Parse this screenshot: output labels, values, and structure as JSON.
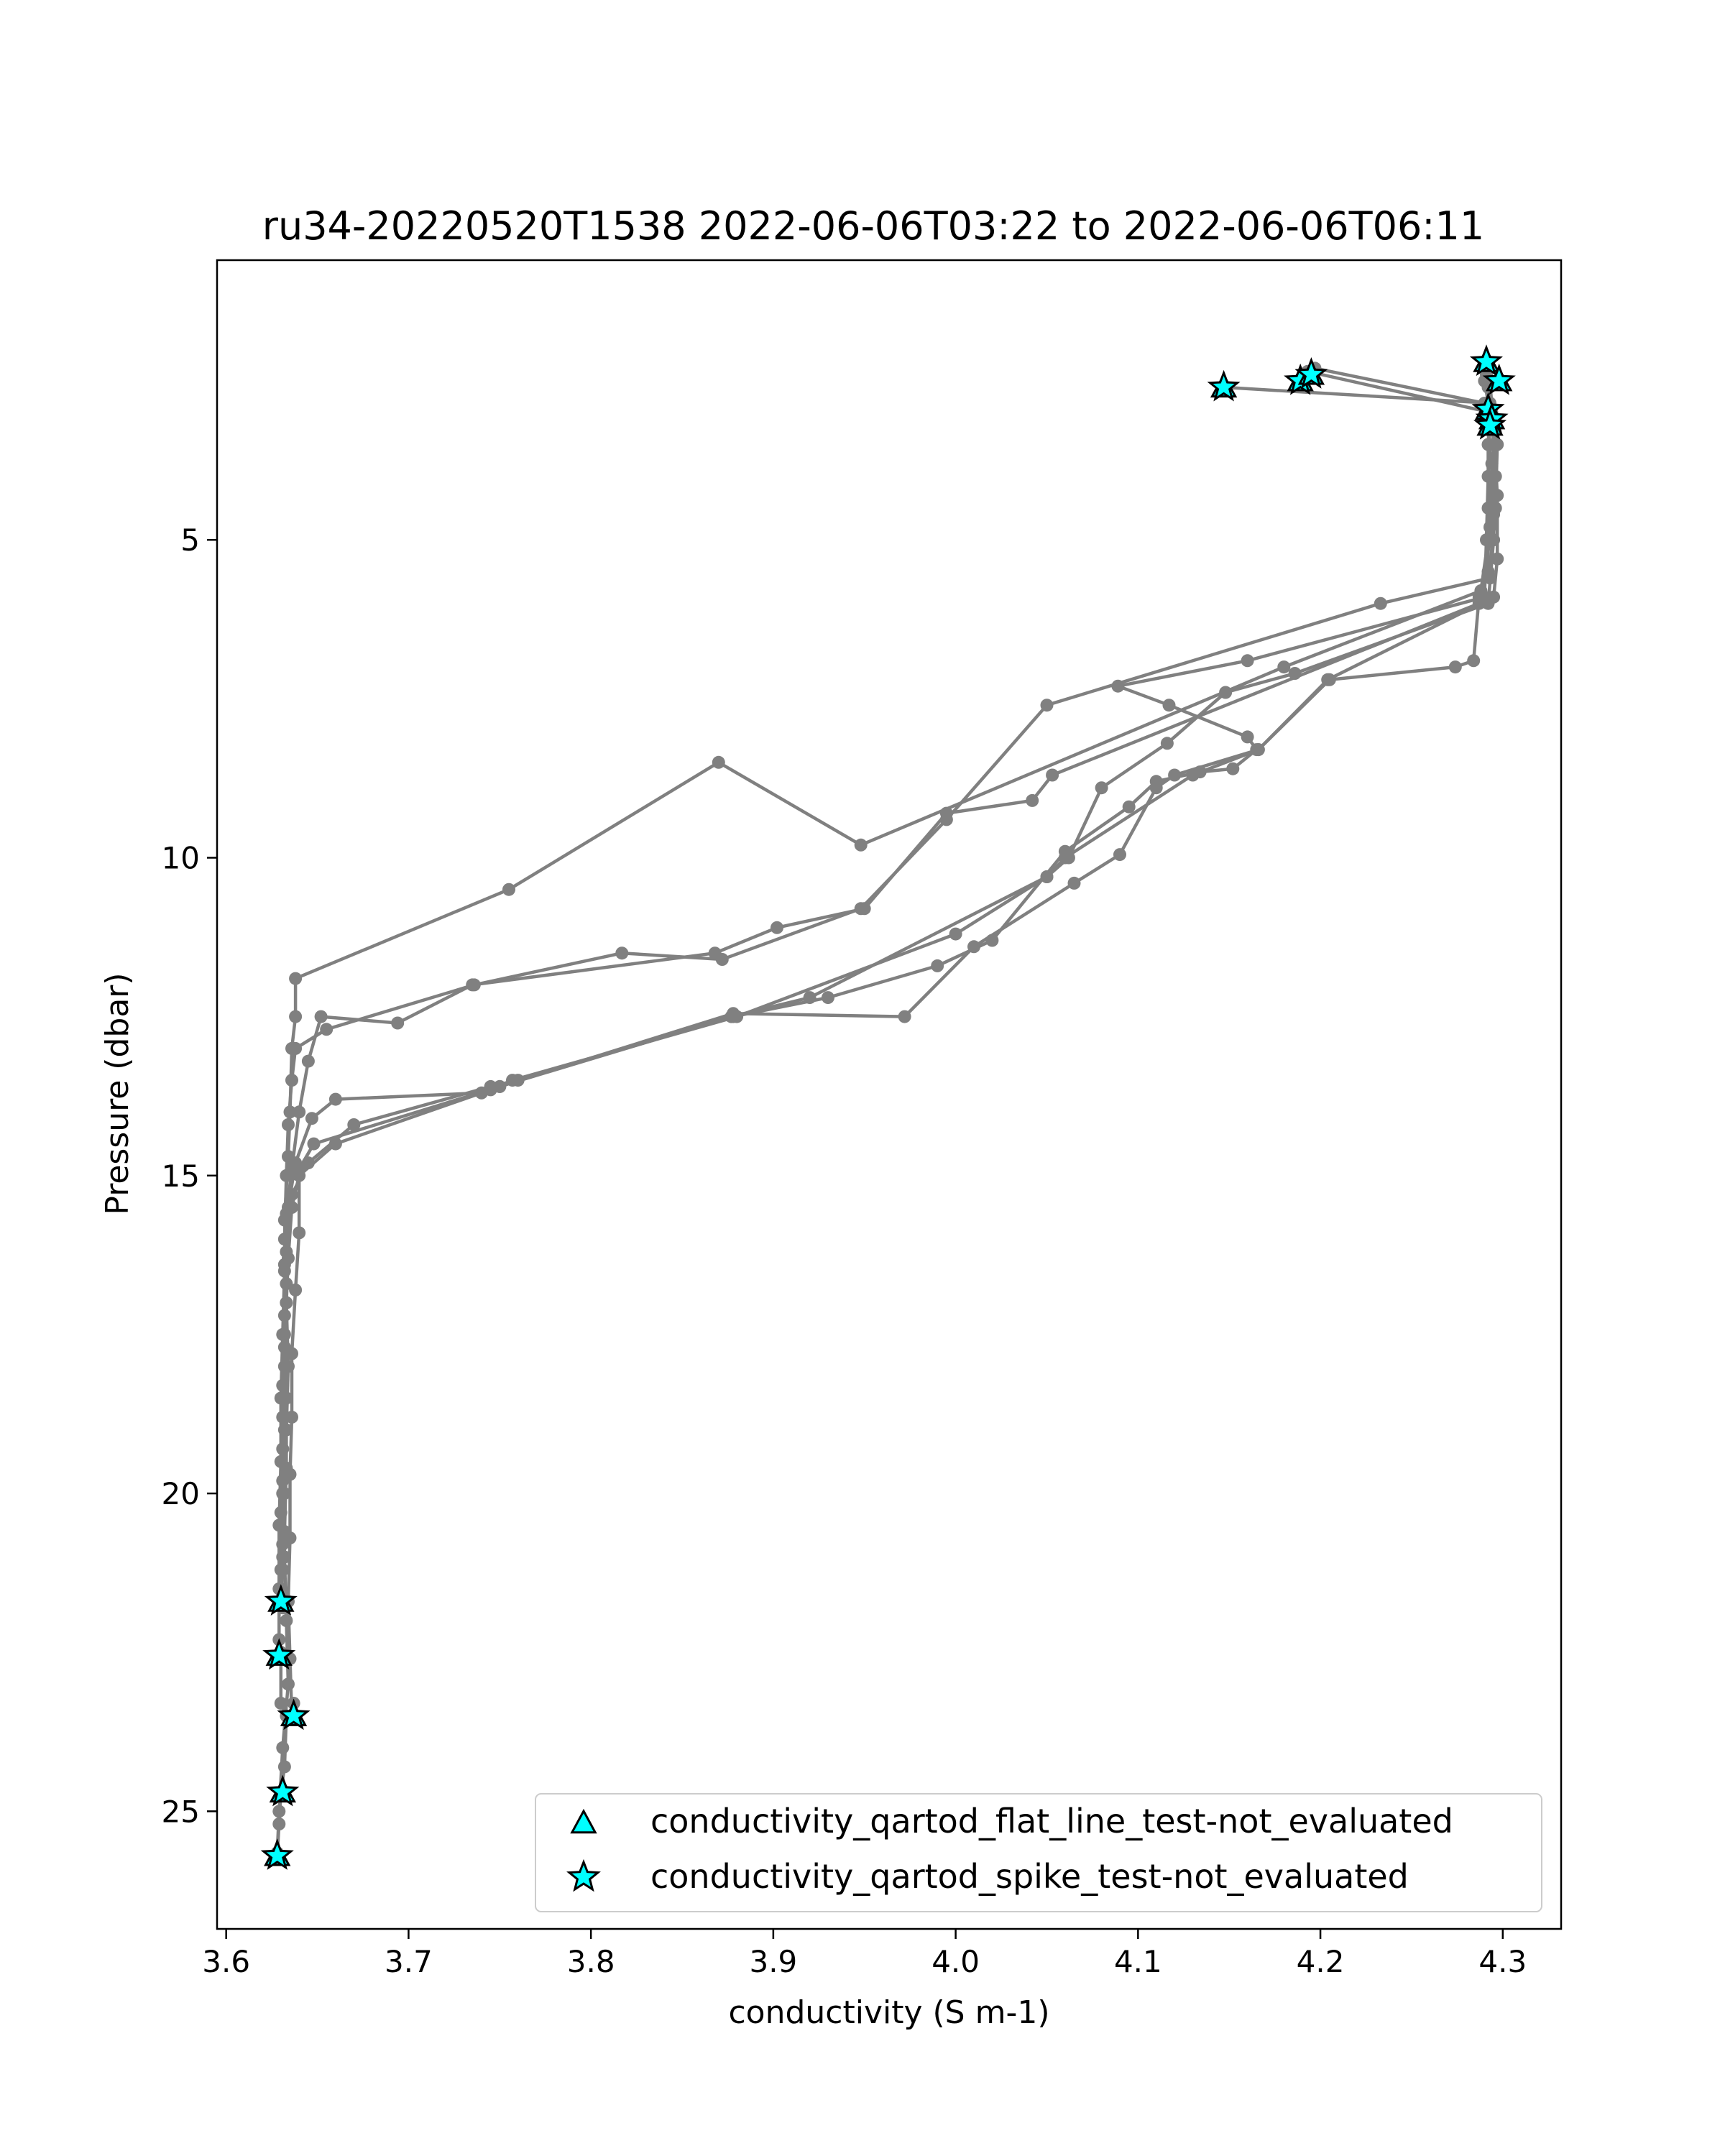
{
  "chart_data": {
    "type": "scatter",
    "title": "ru34-20220520T1538 2022-06-06T03:22 to 2022-06-06T06:11",
    "xlabel": "conductivity (S m-1)",
    "ylabel": "Pressure (dbar)",
    "xlim": [
      3.595,
      4.332
    ],
    "ylim": [
      26.85,
      0.6
    ],
    "y_inverted": true,
    "grid": false,
    "legend_position": "lower-right",
    "xticks": [
      {
        "value": 3.6,
        "label": "3.6"
      },
      {
        "value": 3.7,
        "label": "3.7"
      },
      {
        "value": 3.8,
        "label": "3.8"
      },
      {
        "value": 3.9,
        "label": "3.9"
      },
      {
        "value": 4.0,
        "label": "4.0"
      },
      {
        "value": 4.1,
        "label": "4.1"
      },
      {
        "value": 4.2,
        "label": "4.2"
      },
      {
        "value": 4.3,
        "label": "4.3"
      }
    ],
    "yticks": [
      {
        "value": 5,
        "label": "5"
      },
      {
        "value": 10,
        "label": "10"
      },
      {
        "value": 15,
        "label": "15"
      },
      {
        "value": 20,
        "label": "20"
      },
      {
        "value": 25,
        "label": "25"
      }
    ],
    "line_color": "#808080",
    "marker_color": "#00FFFF",
    "series": [
      {
        "points": [
          [
            4.291,
            2.4
          ],
          [
            4.293,
            3.0
          ],
          [
            4.292,
            4.0
          ],
          [
            4.291,
            5.0
          ],
          [
            4.29,
            5.9
          ],
          [
            4.16,
            6.9
          ],
          [
            4.089,
            7.3
          ],
          [
            4.117,
            7.6
          ],
          [
            4.16,
            8.1
          ],
          [
            4.165,
            8.3
          ],
          [
            4.152,
            8.6
          ],
          [
            4.134,
            8.65
          ],
          [
            4.11,
            8.8
          ],
          [
            4.095,
            9.2
          ],
          [
            4.06,
            9.9
          ],
          [
            4.02,
            11.3
          ],
          [
            3.99,
            11.7
          ],
          [
            3.93,
            12.2
          ],
          [
            3.878,
            12.5
          ],
          [
            3.76,
            13.5
          ],
          [
            3.745,
            13.6
          ],
          [
            3.67,
            14.2
          ],
          [
            3.645,
            14.8
          ],
          [
            3.636,
            15.3
          ],
          [
            3.633,
            16.2
          ],
          [
            3.632,
            17.2
          ],
          [
            3.631,
            18.3
          ],
          [
            3.631,
            19.3
          ],
          [
            3.63,
            20.3
          ],
          [
            3.63,
            21.2
          ],
          [
            3.63,
            21.7
          ]
        ]
      },
      {
        "points": [
          [
            3.63,
            22.5
          ],
          [
            3.63,
            23.3
          ],
          [
            3.633,
            23.5
          ],
          [
            3.632,
            24.3
          ],
          [
            3.63,
            24.7
          ],
          [
            3.629,
            25.2
          ],
          [
            3.628,
            25.7
          ],
          [
            3.628,
            25.65
          ],
          [
            3.629,
            25.0
          ],
          [
            3.631,
            24.0
          ],
          [
            3.634,
            23.0
          ],
          [
            3.633,
            22.0
          ],
          [
            3.632,
            21.0
          ],
          [
            3.632,
            20.0
          ],
          [
            3.633,
            19.0
          ],
          [
            3.634,
            18.0
          ],
          [
            3.633,
            17.0
          ],
          [
            3.634,
            16.3
          ],
          [
            3.636,
            15.5
          ],
          [
            3.64,
            15.0
          ],
          [
            3.66,
            14.5
          ],
          [
            3.745,
            13.65
          ],
          [
            3.75,
            13.6
          ],
          [
            3.878,
            12.45
          ],
          [
            3.972,
            12.5
          ],
          [
            4.01,
            11.4
          ],
          [
            4.065,
            10.4
          ],
          [
            4.09,
            9.95
          ],
          [
            4.11,
            8.9
          ],
          [
            4.12,
            8.7
          ],
          [
            4.166,
            8.3
          ],
          [
            4.205,
            7.2
          ],
          [
            4.274,
            7.0
          ],
          [
            4.284,
            6.9
          ],
          [
            4.287,
            5.9
          ],
          [
            4.292,
            5.5
          ],
          [
            4.292,
            4.5
          ],
          [
            4.292,
            3.5
          ],
          [
            4.293,
            3.0
          ],
          [
            4.29,
            2.5
          ]
        ]
      },
      {
        "points": [
          [
            4.193,
            2.35
          ],
          [
            4.294,
            3.0
          ],
          [
            4.296,
            4.0
          ],
          [
            4.295,
            5.0
          ],
          [
            4.292,
            6.0
          ],
          [
            4.186,
            7.1
          ],
          [
            4.148,
            7.4
          ],
          [
            4.116,
            8.2
          ],
          [
            4.08,
            8.9
          ],
          [
            4.062,
            10.0
          ],
          [
            4.05,
            10.3
          ],
          [
            4.0,
            11.2
          ],
          [
            3.88,
            12.5
          ],
          [
            3.757,
            13.5
          ],
          [
            3.74,
            13.7
          ],
          [
            3.66,
            13.8
          ],
          [
            3.647,
            14.1
          ],
          [
            3.638,
            14.8
          ],
          [
            3.634,
            15.5
          ],
          [
            3.632,
            16.5
          ],
          [
            3.631,
            17.5
          ],
          [
            3.63,
            18.5
          ],
          [
            3.63,
            19.5
          ],
          [
            3.629,
            20.5
          ],
          [
            3.629,
            21.5
          ],
          [
            3.629,
            22.3
          ],
          [
            3.628,
            22.55
          ]
        ]
      },
      {
        "points": [
          [
            4.292,
            2.6
          ],
          [
            4.297,
            3.5
          ],
          [
            4.296,
            4.5
          ],
          [
            4.287,
            6.0
          ],
          [
            4.053,
            8.7
          ],
          [
            4.042,
            9.1
          ],
          [
            3.995,
            9.3
          ],
          [
            3.95,
            10.8
          ],
          [
            3.902,
            11.1
          ],
          [
            3.868,
            11.5
          ],
          [
            3.735,
            12.0
          ],
          [
            3.694,
            12.6
          ],
          [
            3.652,
            12.5
          ],
          [
            3.645,
            13.2
          ],
          [
            3.64,
            14.0
          ],
          [
            3.636,
            14.9
          ],
          [
            3.633,
            15.6
          ],
          [
            3.632,
            16.4
          ],
          [
            3.632,
            17.5
          ],
          [
            3.633,
            18.5
          ],
          [
            3.633,
            19.6
          ],
          [
            3.632,
            20.6
          ],
          [
            3.631,
            21.2
          ],
          [
            3.63,
            21.7
          ]
        ]
      },
      {
        "points": [
          [
            4.147,
            2.6
          ],
          [
            4.293,
            2.85
          ],
          [
            4.295,
            3.5
          ],
          [
            4.295,
            4.6
          ],
          [
            4.293,
            5.6
          ],
          [
            4.233,
            6.0
          ],
          [
            4.05,
            7.6
          ],
          [
            3.995,
            9.4
          ],
          [
            3.948,
            10.8
          ],
          [
            3.872,
            11.6
          ],
          [
            3.817,
            11.5
          ],
          [
            3.736,
            12.0
          ],
          [
            3.655,
            12.7
          ],
          [
            3.638,
            13.0
          ],
          [
            3.636,
            13.5
          ],
          [
            3.634,
            14.2
          ],
          [
            3.633,
            15.0
          ],
          [
            3.632,
            16.0
          ],
          [
            3.633,
            17.0
          ],
          [
            3.632,
            18.0
          ],
          [
            3.632,
            19.0
          ],
          [
            3.631,
            20.0
          ],
          [
            3.631,
            21.0
          ],
          [
            3.63,
            21.75
          ]
        ]
      },
      {
        "points": [
          [
            4.197,
            2.3
          ],
          [
            4.29,
            2.85
          ],
          [
            4.294,
            3.8
          ],
          [
            4.293,
            4.8
          ],
          [
            4.288,
            5.8
          ],
          [
            4.18,
            7.0
          ],
          [
            3.948,
            9.8
          ],
          [
            3.87,
            8.5
          ],
          [
            3.755,
            10.5
          ],
          [
            3.638,
            11.9
          ],
          [
            3.638,
            12.5
          ],
          [
            3.636,
            13.0
          ],
          [
            3.635,
            14.0
          ],
          [
            3.634,
            14.7
          ],
          [
            3.632,
            15.7
          ],
          [
            3.633,
            16.7
          ],
          [
            3.632,
            17.7
          ],
          [
            3.631,
            18.8
          ],
          [
            3.631,
            19.8
          ],
          [
            3.631,
            20.8
          ],
          [
            3.63,
            21.5
          ],
          [
            3.631,
            21.8
          ]
        ]
      },
      {
        "points": [
          [
            4.292,
            2.2
          ],
          [
            4.295,
            3.2
          ],
          [
            4.297,
            4.3
          ],
          [
            4.297,
            5.3
          ],
          [
            4.295,
            5.9
          ],
          [
            4.204,
            7.2
          ],
          [
            4.166,
            8.3
          ],
          [
            4.13,
            8.7
          ],
          [
            4.06,
            10.0
          ],
          [
            4.05,
            10.3
          ],
          [
            3.92,
            12.2
          ],
          [
            3.877,
            12.5
          ],
          [
            3.75,
            13.6
          ],
          [
            3.648,
            14.5
          ],
          [
            3.64,
            14.9
          ],
          [
            3.64,
            15.9
          ],
          [
            3.638,
            16.8
          ],
          [
            3.636,
            17.8
          ],
          [
            3.636,
            18.8
          ],
          [
            3.635,
            19.7
          ],
          [
            3.635,
            20.7
          ],
          [
            3.634,
            21.7
          ],
          [
            3.635,
            22.6
          ],
          [
            3.636,
            23.5
          ],
          [
            3.637,
            23.3
          ]
        ]
      }
    ],
    "flagged_points": [
      {
        "x": 4.147,
        "y": 2.6
      },
      {
        "x": 4.189,
        "y": 2.5
      },
      {
        "x": 4.195,
        "y": 2.4
      },
      {
        "x": 4.291,
        "y": 2.2
      },
      {
        "x": 4.298,
        "y": 2.5
      },
      {
        "x": 4.292,
        "y": 2.95
      },
      {
        "x": 4.294,
        "y": 3.1
      },
      {
        "x": 4.293,
        "y": 3.2
      },
      {
        "x": 3.63,
        "y": 21.7
      },
      {
        "x": 3.629,
        "y": 22.55
      },
      {
        "x": 3.637,
        "y": 23.5
      },
      {
        "x": 3.631,
        "y": 24.7
      },
      {
        "x": 3.628,
        "y": 25.7
      }
    ],
    "legend": [
      {
        "marker": "triangle",
        "label": "conductivity_qartod_flat_line_test-not_evaluated"
      },
      {
        "marker": "star",
        "label": "conductivity_qartod_spike_test-not_evaluated"
      }
    ]
  }
}
